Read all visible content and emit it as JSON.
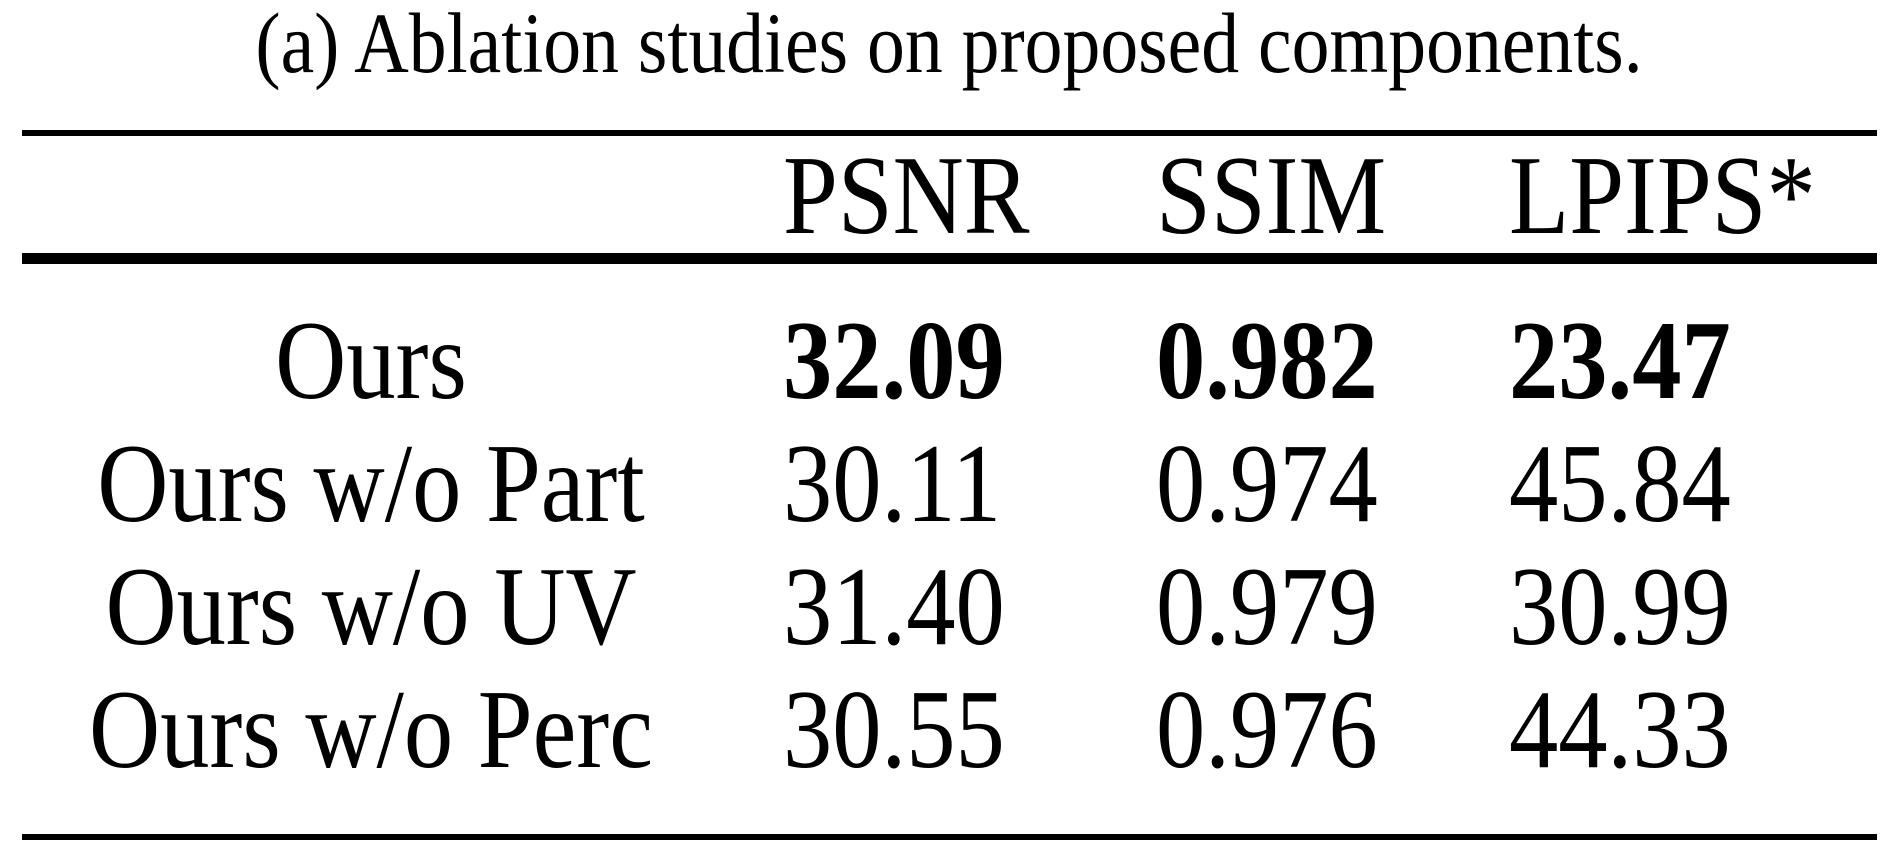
{
  "figure": {
    "caption": "(a) Ablation studies on proposed components."
  },
  "table": {
    "headers": {
      "psnr": "PSNR",
      "ssim": "SSIM",
      "lpips": "LPIPS*"
    },
    "rows": [
      {
        "label": "Ours",
        "psnr": "32.09",
        "ssim": "0.982",
        "lpips": "23.47"
      },
      {
        "label": "Ours w/o Part",
        "psnr": "30.11",
        "ssim": "0.974",
        "lpips": "45.84"
      },
      {
        "label": "Ours w/o UV",
        "psnr": "31.40",
        "ssim": "0.979",
        "lpips": "30.99"
      },
      {
        "label": "Ours w/o Perc",
        "psnr": "30.55",
        "ssim": "0.976",
        "lpips": "44.33"
      }
    ]
  },
  "colors": {
    "text": "#000000",
    "background": "#ffffff",
    "rule": "#000000"
  }
}
